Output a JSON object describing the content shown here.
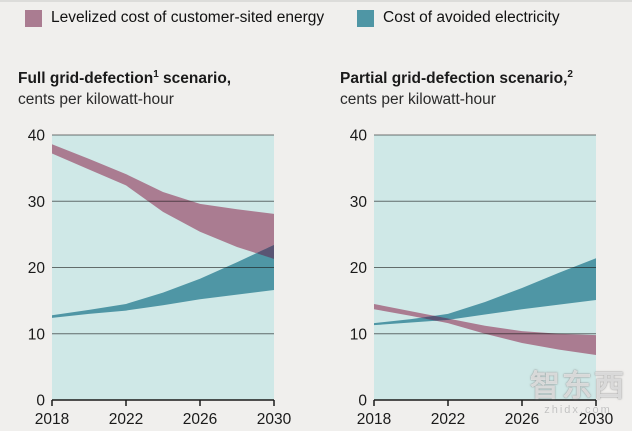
{
  "legend": {
    "items": [
      {
        "label": "Levelized cost of customer-sited energy",
        "color": "#aa7c91"
      },
      {
        "label": "Cost of avoided electricity",
        "color": "#4f96a5"
      }
    ]
  },
  "watermark": {
    "text": "智东西",
    "subtext": "zhidx.com"
  },
  "chart_data": [
    {
      "type": "area",
      "title": {
        "pre": "Full grid-defection",
        "sup": "1",
        "post": " scenario,"
      },
      "subtitle": "cents per kilowatt-hour",
      "x": [
        2018,
        2020,
        2022,
        2024,
        2026,
        2028,
        2030
      ],
      "xticks": [
        2018,
        2022,
        2026,
        2030
      ],
      "yticks": [
        0,
        10,
        20,
        30,
        40
      ],
      "xlim": [
        2018,
        2030
      ],
      "ylim": [
        0,
        40
      ],
      "plot_bg": "#cfe8e7",
      "overlap_color": "#5a5574",
      "grid": true,
      "legend_position": "top",
      "series": [
        {
          "name": "Levelized cost of customer-sited energy",
          "color": "#aa7c91",
          "upper": [
            38.6,
            36.4,
            34.1,
            31.4,
            29.6,
            28.8,
            28.1
          ],
          "lower": [
            37.2,
            34.8,
            32.4,
            28.4,
            25.4,
            23.1,
            21.3
          ]
        },
        {
          "name": "Cost of avoided electricity",
          "color": "#4f96a5",
          "upper": [
            12.8,
            13.6,
            14.5,
            16.2,
            18.3,
            20.8,
            23.4
          ],
          "lower": [
            12.4,
            13.0,
            13.5,
            14.3,
            15.2,
            15.9,
            16.6
          ]
        }
      ]
    },
    {
      "type": "area",
      "title": {
        "pre": "Partial grid-defection scenario,",
        "sup": "2",
        "post": ""
      },
      "subtitle": "cents per kilowatt-hour",
      "x": [
        2018,
        2020,
        2022,
        2024,
        2026,
        2028,
        2030
      ],
      "xticks": [
        2018,
        2022,
        2026,
        2030
      ],
      "yticks": [
        0,
        10,
        20,
        30,
        40
      ],
      "xlim": [
        2018,
        2030
      ],
      "ylim": [
        0,
        40
      ],
      "plot_bg": "#cfe8e7",
      "overlap_color": "#5a5574",
      "grid": true,
      "legend_position": "top",
      "series": [
        {
          "name": "Levelized cost of customer-sited energy",
          "color": "#aa7c91",
          "upper": [
            14.5,
            13.4,
            12.3,
            11.2,
            10.4,
            10.0,
            9.8
          ],
          "lower": [
            13.7,
            12.7,
            11.6,
            10.0,
            8.6,
            7.6,
            6.8
          ]
        },
        {
          "name": "Cost of avoided electricity",
          "color": "#4f96a5",
          "upper": [
            11.6,
            12.2,
            13.0,
            14.8,
            16.9,
            19.2,
            21.4
          ],
          "lower": [
            11.3,
            11.7,
            12.1,
            12.9,
            13.7,
            14.4,
            15.1
          ]
        }
      ]
    }
  ]
}
